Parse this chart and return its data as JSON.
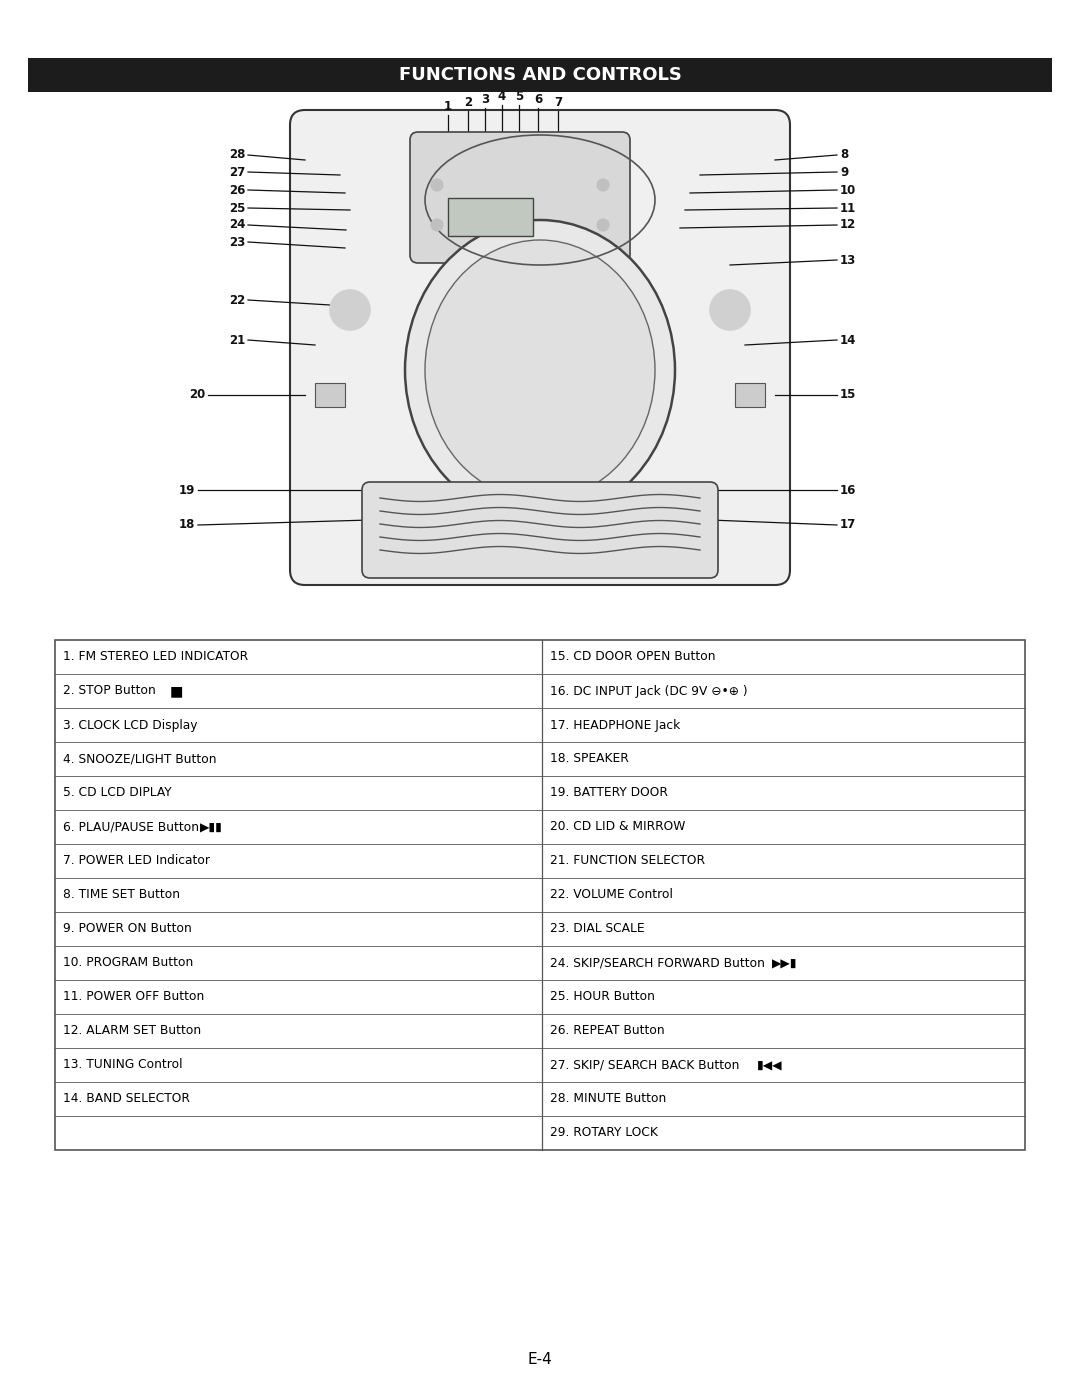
{
  "title": "FUNCTIONS AND CONTROLS",
  "title_bg": "#1c1c1c",
  "title_color": "#ffffff",
  "page_label": "E-4",
  "bg_color": "#ffffff",
  "table_border_color": "#555555",
  "table_text_color": "#000000",
  "table_font_size": 8.8,
  "table_left": [
    "1. FM STEREO LED INDICATOR",
    "2. STOP Button",
    "3. CLOCK LCD Display",
    "4. SNOOZE/LIGHT Button",
    "5. CD LCD DIPLAY",
    "6. PLAU/PAUSE Button",
    "7. POWER LED Indicator",
    "8. TIME SET Button",
    "9. POWER ON Button",
    "10. PROGRAM Button",
    "11. POWER OFF Button",
    "12. ALARM SET Button",
    "13. TUNING Control",
    "14. BAND SELECTOR",
    ""
  ],
  "table_right": [
    "15. CD DOOR OPEN Button",
    "16. DC INPUT Jack (DC 9V ⊖•⊕ )",
    "17. HEADPHONE Jack",
    "18. SPEAKER",
    "19. BATTERY DOOR",
    "20. CD LID & MIRROW",
    "21. FUNCTION SELECTOR",
    "22. VOLUME Control",
    "23. DIAL SCALE",
    "24. SKIP/SEARCH FORWARD Button",
    "25. HOUR Button",
    "26. REPEAT Button",
    "27. SKIP/ SEARCH BACK Button",
    "28. MINUTE Button",
    "29. ROTARY LOCK"
  ]
}
